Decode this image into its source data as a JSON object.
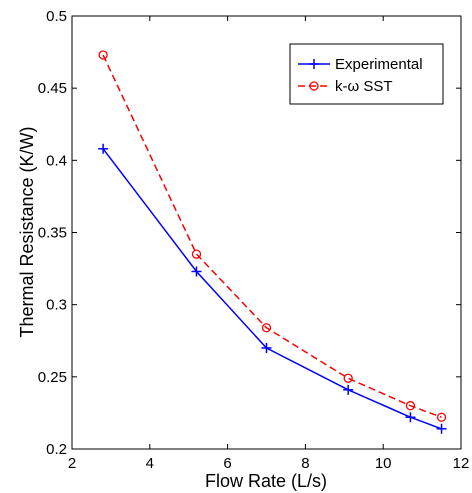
{
  "chart_data": {
    "type": "line",
    "title": "",
    "xlabel": "Flow Rate (L/s)",
    "ylabel": "Thermal Resistance (K/W)",
    "xlim": [
      2,
      12
    ],
    "ylim": [
      0.2,
      0.5
    ],
    "xticks": [
      "2",
      "4",
      "6",
      "8",
      "10",
      "12"
    ],
    "yticks": [
      "0.2",
      "0.25",
      "0.3",
      "0.35",
      "0.4",
      "0.45",
      "0.5"
    ],
    "grid": false,
    "legend_position": "top-right",
    "series": [
      {
        "name": "Experimental",
        "color": "#0000ff",
        "line_style": "solid",
        "marker": "plus",
        "x": [
          2.8,
          5.2,
          7.0,
          9.1,
          10.7,
          11.5
        ],
        "y": [
          0.408,
          0.323,
          0.27,
          0.241,
          0.222,
          0.214
        ]
      },
      {
        "name": "k-ω SST",
        "color": "#ff0000",
        "line_style": "dashed",
        "marker": "circle",
        "x": [
          2.8,
          5.2,
          7.0,
          9.1,
          10.7,
          11.5
        ],
        "y": [
          0.473,
          0.335,
          0.284,
          0.249,
          0.23,
          0.222
        ]
      }
    ]
  }
}
